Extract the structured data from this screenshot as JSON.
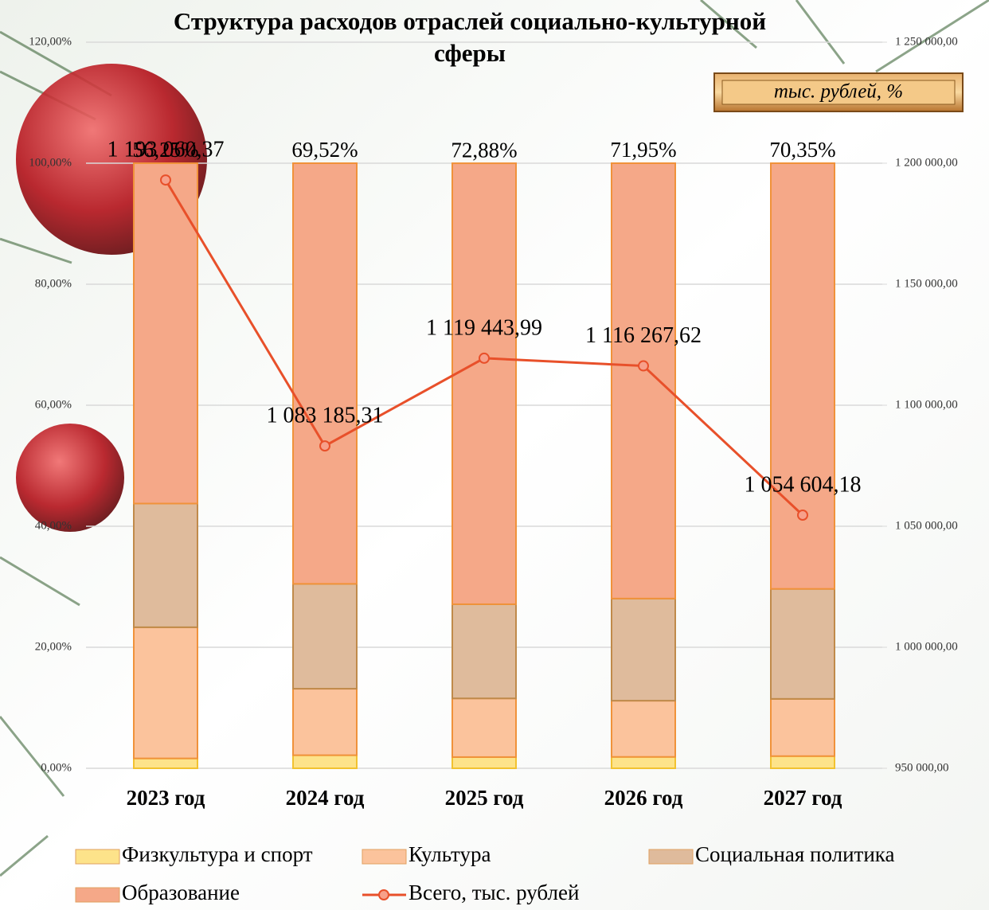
{
  "chart_data": {
    "type": "stacked_bar_line",
    "title": "Структура расходов отраслей социально-культурной сферы",
    "annotation": "тыс. рублей, %",
    "categories": [
      "2023 год",
      "2024 год",
      "2025 год",
      "2026 год",
      "2027 год"
    ],
    "series": [
      {
        "name": "Физкультура и спорт",
        "color": "#fde38a",
        "values": [
          1.63,
          2.16,
          1.85,
          1.88,
          2.01
        ],
        "value_labels": [
          "1,63%",
          "2,16%",
          "1,85%",
          "1,88%",
          "2,01%"
        ]
      },
      {
        "name": "Культура",
        "color": "#fbc39c",
        "values": [
          21.68,
          10.99,
          9.7,
          9.29,
          9.46
        ],
        "value_labels": [
          "21,68%",
          "10,99%",
          "9,70%",
          "9,29%",
          "9,46%"
        ]
      },
      {
        "name": "Социальная политика",
        "color": "#dfbb9c",
        "values": [
          20.44,
          17.33,
          15.56,
          16.88,
          18.18
        ],
        "value_labels": [
          "20,44%",
          "17,33%",
          "15,56%",
          "16,88%",
          "18,18%"
        ]
      },
      {
        "name": "Образование",
        "color": "#f5a888",
        "values": [
          56.25,
          69.52,
          72.88,
          71.95,
          70.35
        ],
        "value_labels": [
          "56,25%",
          "69,52%",
          "72,88%",
          "71,95%",
          "70,35%"
        ]
      },
      {
        "name": "Всего, тыс. рублей",
        "type": "line",
        "axis": "y2",
        "color": "#e8502a",
        "values": [
          1193060.37,
          1083185.31,
          1119443.99,
          1116267.62,
          1054604.18
        ],
        "value_labels": [
          "1 193 060,37",
          "1 083 185,31",
          "1 119 443,99",
          "1 116 267,62",
          "1 054 604,18"
        ]
      }
    ],
    "ylim": [
      0,
      120
    ],
    "yticks": [
      {
        "value": 0,
        "label": "0,00%"
      },
      {
        "value": 20,
        "label": "20,00%"
      },
      {
        "value": 40,
        "label": "40,00%"
      },
      {
        "value": 60,
        "label": "60,00%"
      },
      {
        "value": 80,
        "label": "80,00%"
      },
      {
        "value": 100,
        "label": "100,00%"
      },
      {
        "value": 120,
        "label": "120,00%"
      }
    ],
    "y2lim": [
      950000,
      1250000
    ],
    "y2ticks": [
      {
        "value": 950000,
        "label": "950 000,00"
      },
      {
        "value": 1000000,
        "label": "1 000 000,00"
      },
      {
        "value": 1050000,
        "label": "1 050 000,00"
      },
      {
        "value": 1100000,
        "label": "1 100 000,00"
      },
      {
        "value": 1150000,
        "label": "1 150 000,00"
      },
      {
        "value": 1200000,
        "label": "1 200 000,00"
      },
      {
        "value": 1250000,
        "label": "1 250 000,00"
      }
    ],
    "grid": true,
    "legend": "bottom"
  }
}
